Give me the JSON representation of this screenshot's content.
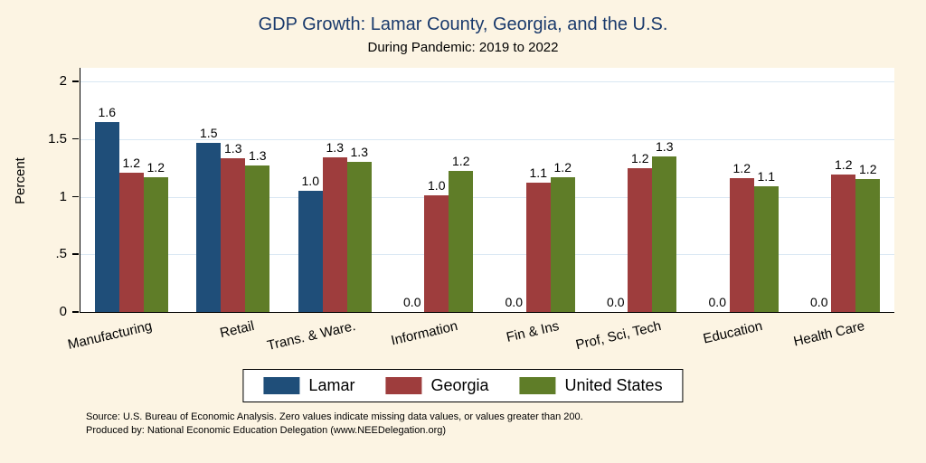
{
  "title": "GDP Growth: Lamar County, Georgia, and the U.S.",
  "subtitle": "During Pandemic: 2019 to 2022",
  "ylabel": "Percent",
  "notes": {
    "line1": "Source: U.S. Bureau of Economic Analysis. Zero values indicate missing data values, or values greater than 200.",
    "line2": "Produced by: National Economic Education Delegation (www.NEEDelegation.org)"
  },
  "colors": {
    "background": "#fcf4e3",
    "plot_background": "#ffffff",
    "title": "#1a3a6c",
    "gridline": "#d9e7f3",
    "lamar": "#1f4e79",
    "georgia": "#9e3d3d",
    "united_states": "#5f7d28"
  },
  "chart_data": {
    "type": "bar",
    "title": "GDP Growth: Lamar County, Georgia, and the U.S.",
    "subtitle": "During Pandemic: 2019 to 2022",
    "xlabel": "",
    "ylabel": "Percent",
    "ylim": [
      0,
      2.12
    ],
    "grid": true,
    "legend_position": "bottom",
    "categories": [
      "Manufacturing",
      "Retail",
      "Trans. & Ware.",
      "Information",
      "Fin & Ins",
      "Prof, Sci, Tech",
      "Education",
      "Health Care"
    ],
    "yticks": [
      {
        "v": 0,
        "label": "0"
      },
      {
        "v": 0.5,
        "label": ".5"
      },
      {
        "v": 1,
        "label": "1"
      },
      {
        "v": 1.5,
        "label": "1.5"
      },
      {
        "v": 2,
        "label": "2"
      }
    ],
    "series": [
      {
        "name": "Lamar",
        "color": "#1f4e79",
        "values": [
          1.65,
          1.47,
          1.05,
          0,
          0,
          0,
          0,
          0
        ],
        "labels": [
          "1.6",
          "1.5",
          "1.0",
          "0.0",
          "0.0",
          "0.0",
          "0.0",
          "0.0"
        ]
      },
      {
        "name": "Georgia",
        "color": "#9e3d3d",
        "values": [
          1.21,
          1.33,
          1.34,
          1.01,
          1.12,
          1.25,
          1.16,
          1.19
        ],
        "labels": [
          "1.2",
          "1.3",
          "1.3",
          "1.0",
          "1.1",
          "1.2",
          "1.2",
          "1.2"
        ]
      },
      {
        "name": "United States",
        "color": "#5f7d28",
        "values": [
          1.17,
          1.27,
          1.3,
          1.22,
          1.17,
          1.35,
          1.09,
          1.15
        ],
        "labels": [
          "1.2",
          "1.3",
          "1.3",
          "1.2",
          "1.2",
          "1.3",
          "1.1",
          "1.2"
        ]
      }
    ]
  }
}
